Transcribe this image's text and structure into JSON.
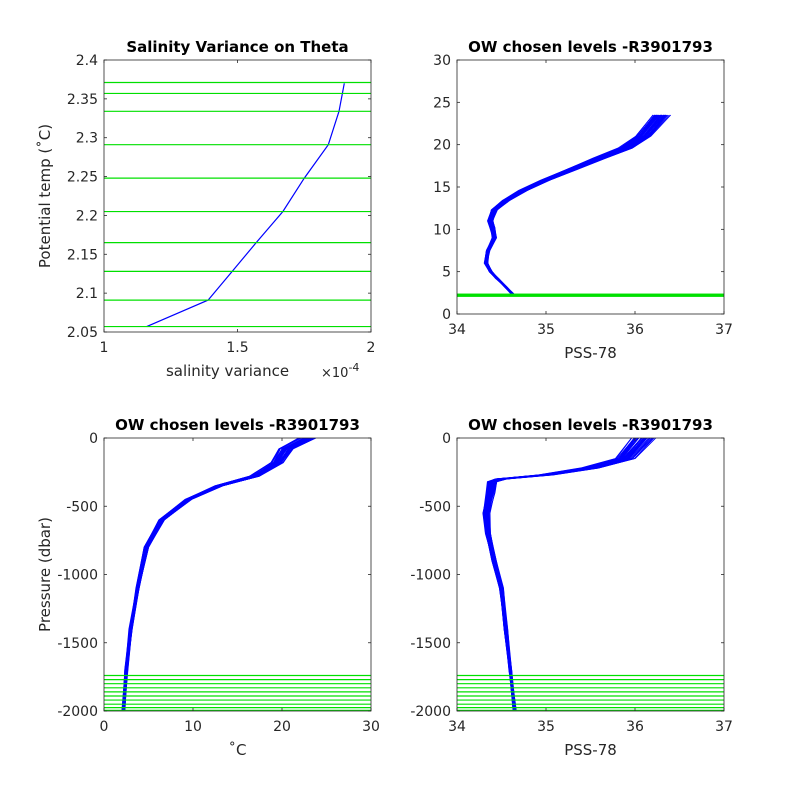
{
  "chart_data": [
    {
      "type": "line",
      "title": "Salinity Variance on Theta",
      "xlabel": "salinity variance",
      "x_multiplier": "×10",
      "x_multiplier_exp": "-4",
      "ylabel": "Potential temp (˚C)",
      "xlim": [
        1,
        2
      ],
      "ylim": [
        2.05,
        2.4
      ],
      "xticks": [
        1,
        1.5,
        2
      ],
      "xtick_labels": [
        "1",
        "1.5",
        "2"
      ],
      "yticks": [
        2.05,
        2.1,
        2.15,
        2.2,
        2.25,
        2.3,
        2.35,
        2.4
      ],
      "ytick_labels": [
        "2.05",
        "2.1",
        "2.15",
        "2.2",
        "2.25",
        "2.3",
        "2.35",
        "2.4"
      ],
      "series": [
        {
          "color": "#0000ff",
          "x": [
            1.16,
            1.39,
            1.48,
            1.57,
            1.67,
            1.75,
            1.84,
            1.88,
            1.9
          ],
          "y": [
            2.057,
            2.091,
            2.128,
            2.165,
            2.205,
            2.248,
            2.291,
            2.334,
            2.37
          ]
        }
      ],
      "hlines": [
        2.057,
        2.091,
        2.128,
        2.165,
        2.205,
        2.248,
        2.291,
        2.334,
        2.357,
        2.371
      ],
      "hline_color": "#00e000"
    },
    {
      "type": "line",
      "title": "OW chosen levels -R3901793",
      "xlabel": "PSS-78",
      "ylabel": "",
      "xlim": [
        34,
        37
      ],
      "ylim": [
        0,
        30
      ],
      "xticks": [
        34,
        35,
        36,
        37
      ],
      "xtick_labels": [
        "34",
        "35",
        "36",
        "37"
      ],
      "yticks": [
        0,
        5,
        10,
        15,
        20,
        25,
        30
      ],
      "ytick_labels": [
        "0",
        "5",
        "10",
        "15",
        "20",
        "25",
        "30"
      ],
      "profile_color": "#0000ff",
      "profile": {
        "x": [
          34.63,
          34.55,
          34.45,
          34.38,
          34.33,
          34.35,
          34.42,
          34.4,
          34.38,
          34.42,
          34.55,
          34.75,
          35.0,
          35.3,
          35.6,
          35.9,
          36.1,
          36.3
        ],
        "y": [
          2.3,
          3.2,
          4.2,
          5.0,
          6.0,
          7.5,
          9.0,
          10.2,
          11.0,
          12.3,
          13.4,
          14.6,
          15.8,
          17.1,
          18.4,
          19.6,
          21.0,
          23.5
        ]
      },
      "profile_count": 40,
      "hlines": [
        2.057,
        2.091,
        2.128,
        2.165,
        2.205,
        2.248,
        2.291,
        2.334,
        2.357,
        2.371
      ],
      "hline_color": "#00e000"
    },
    {
      "type": "line",
      "title": "OW chosen levels -R3901793",
      "xlabel": "˚C",
      "ylabel": "Pressure (dbar)",
      "xlim": [
        0,
        30
      ],
      "ylim": [
        -2000,
        0
      ],
      "xticks": [
        0,
        10,
        20,
        30
      ],
      "xtick_labels": [
        "0",
        "10",
        "20",
        "30"
      ],
      "yticks": [
        -2000,
        -1500,
        -1000,
        -500,
        0
      ],
      "ytick_labels": [
        "-2000",
        "-1500",
        "-1000",
        "-500",
        "0"
      ],
      "profile_color": "#0000ff",
      "profile": {
        "x": [
          2.2,
          2.5,
          3.0,
          3.8,
          4.8,
          6.5,
          9.5,
          13.0,
          17.0,
          19.5,
          20.5,
          23.0
        ],
        "y": [
          -2000,
          -1700,
          -1400,
          -1100,
          -800,
          -600,
          -450,
          -350,
          -280,
          -180,
          -80,
          0
        ]
      },
      "profile_count": 40,
      "hlines": [
        -1740,
        -1770,
        -1800,
        -1830,
        -1860,
        -1890,
        -1920,
        -1950,
        -1975,
        -1995
      ],
      "hline_color": "#00e000"
    },
    {
      "type": "line",
      "title": "OW chosen levels -R3901793",
      "xlabel": "PSS-78",
      "ylabel": "",
      "xlim": [
        34,
        37
      ],
      "ylim": [
        -2000,
        0
      ],
      "xticks": [
        34,
        35,
        36,
        37
      ],
      "xtick_labels": [
        "34",
        "35",
        "36",
        "37"
      ],
      "yticks": [
        -2000,
        -1500,
        -1000,
        -500,
        0
      ],
      "ytick_labels": [
        "-2000",
        "-1500",
        "-1000",
        "-500",
        "0"
      ],
      "profile_color": "#0000ff",
      "profile": {
        "x": [
          34.65,
          34.6,
          34.55,
          34.5,
          34.42,
          34.35,
          34.33,
          34.38,
          34.4,
          34.5,
          35.0,
          35.5,
          35.9,
          36.1
        ],
        "y": [
          -2000,
          -1700,
          -1400,
          -1100,
          -900,
          -700,
          -550,
          -400,
          -320,
          -300,
          -270,
          -220,
          -150,
          0
        ]
      },
      "profile_count": 40,
      "hlines": [
        -1740,
        -1770,
        -1800,
        -1830,
        -1860,
        -1890,
        -1920,
        -1950,
        -1975,
        -1995
      ],
      "hline_color": "#00e000"
    }
  ]
}
